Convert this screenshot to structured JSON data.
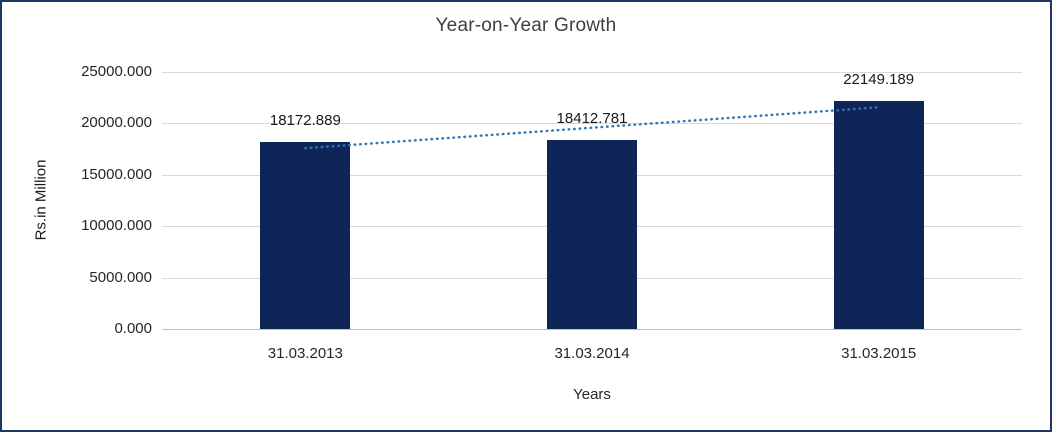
{
  "chart_data": {
    "type": "bar",
    "title": "Year-on-Year Growth",
    "xlabel": "Years",
    "ylabel": "Rs.in Million",
    "categories": [
      "31.03.2013",
      "31.03.2014",
      "31.03.2015"
    ],
    "values": [
      18172.889,
      18412.781,
      22149.189
    ],
    "data_labels": [
      "18172.889",
      "18412.781",
      "22149.189"
    ],
    "ylim": [
      0,
      25000
    ],
    "y_ticks": [
      {
        "value": 0,
        "label": "0.000"
      },
      {
        "value": 5000,
        "label": "5000.000"
      },
      {
        "value": 10000,
        "label": "10000.000"
      },
      {
        "value": 15000,
        "label": "15000.000"
      },
      {
        "value": 20000,
        "label": "20000.000"
      },
      {
        "value": 25000,
        "label": "25000.000"
      }
    ],
    "grid": true,
    "legend": "none",
    "trendline": {
      "type": "linear",
      "style": "dotted"
    },
    "colors": {
      "bar": "#0F2557",
      "trendline": "#2E75B6",
      "gridline": "#D9D9D9",
      "axis_line": "#BFBFBF",
      "border": "#1F3864",
      "background": "#FFFFFF"
    }
  }
}
